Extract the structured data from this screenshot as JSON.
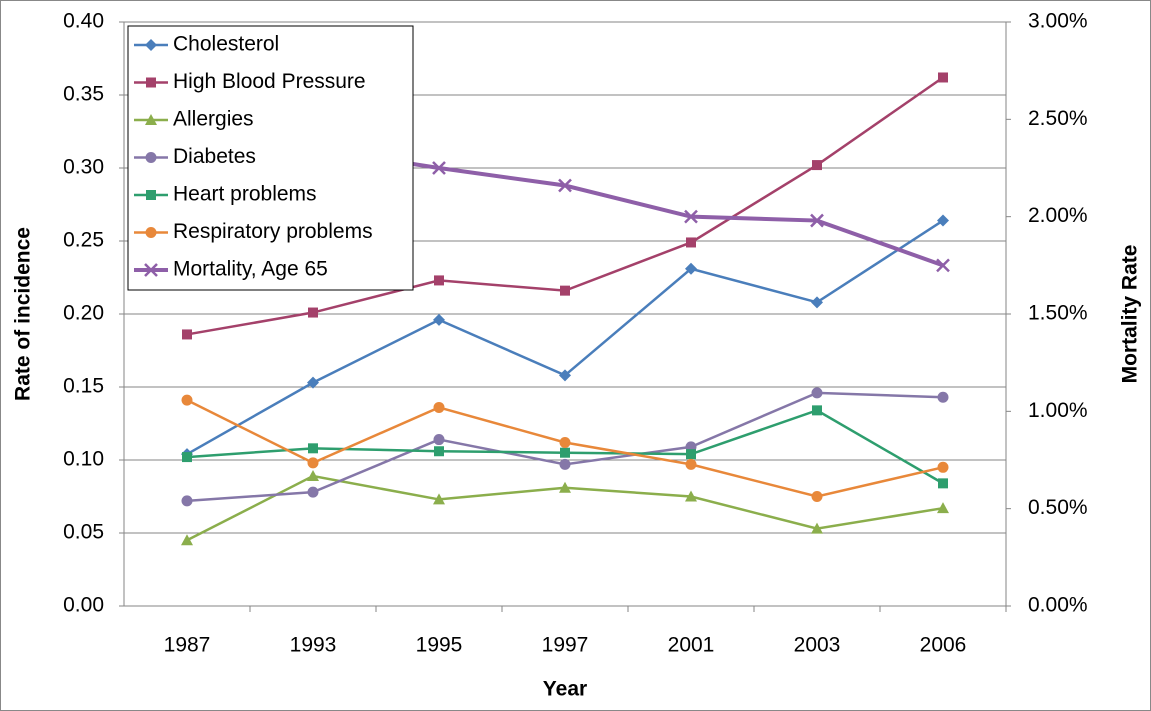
{
  "chart_data": {
    "type": "line",
    "categories": [
      "1987",
      "1993",
      "1995",
      "1997",
      "2001",
      "2003",
      "2006"
    ],
    "x_label": "Year",
    "y_label": "Rate of incidence",
    "y2_label": "Mortality Rate",
    "ylim": [
      0,
      0.4
    ],
    "yticks": [
      {
        "value": 0,
        "label": "0.00"
      },
      {
        "value": 0.05,
        "label": "0.05"
      },
      {
        "value": 0.1,
        "label": "0.10"
      },
      {
        "value": 0.15,
        "label": "0.15"
      },
      {
        "value": 0.2,
        "label": "0.20"
      },
      {
        "value": 0.25,
        "label": "0.25"
      },
      {
        "value": 0.3,
        "label": "0.30"
      },
      {
        "value": 0.35,
        "label": "0.35"
      },
      {
        "value": 0.4,
        "label": "0.40"
      }
    ],
    "y2lim": [
      0,
      3
    ],
    "y2ticks": [
      {
        "value": 0,
        "label": "0.00%"
      },
      {
        "value": 0.5,
        "label": "0.50%"
      },
      {
        "value": 1,
        "label": "1.00%"
      },
      {
        "value": 1.5,
        "label": "1.50%"
      },
      {
        "value": 2,
        "label": "2.00%"
      },
      {
        "value": 2.5,
        "label": "2.50%"
      },
      {
        "value": 3,
        "label": "3.00%"
      }
    ],
    "grid": true,
    "legend": "top-left",
    "series": [
      {
        "name": "Cholesterol",
        "color": "#4a7ebb",
        "marker": "diamond",
        "values": [
          0.104,
          0.153,
          0.196,
          0.158,
          0.231,
          0.208,
          0.264
        ]
      },
      {
        "name": "High Blood Pressure",
        "color": "#a4416a",
        "marker": "square",
        "values": [
          0.186,
          0.201,
          0.223,
          0.216,
          0.249,
          0.302,
          0.362
        ]
      },
      {
        "name": "Allergies",
        "color": "#8bae4c",
        "marker": "triangle",
        "values": [
          0.045,
          0.089,
          0.073,
          0.081,
          0.075,
          0.053,
          0.067
        ]
      },
      {
        "name": "Diabetes",
        "color": "#8577a8",
        "marker": "circle",
        "values": [
          0.072,
          0.078,
          0.114,
          0.097,
          0.109,
          0.146,
          0.143
        ]
      },
      {
        "name": "Heart problems",
        "color": "#2e9e6e",
        "marker": "square",
        "values": [
          0.102,
          0.108,
          0.106,
          0.105,
          0.104,
          0.134,
          0.084
        ]
      },
      {
        "name": "Respiratory problems",
        "color": "#e8883a",
        "marker": "circle",
        "values": [
          0.141,
          0.098,
          0.136,
          0.112,
          0.097,
          0.075,
          0.095
        ]
      },
      {
        "name": "Mortality, Age 65",
        "color": "#8e5fa8",
        "marker": "x",
        "axis": "y2",
        "values": [
          2.49,
          2.35,
          2.25,
          2.16,
          2.0,
          1.98,
          1.75
        ]
      }
    ]
  }
}
